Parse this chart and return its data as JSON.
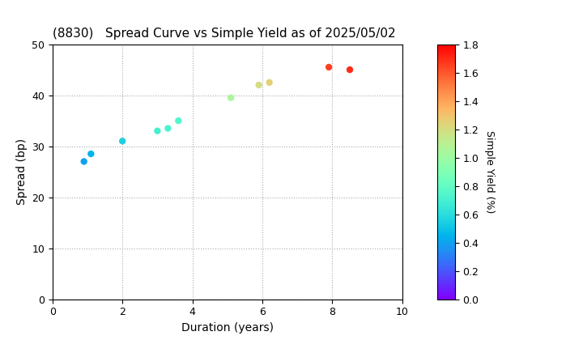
{
  "title": "(8830)   Spread Curve vs Simple Yield as of 2025/05/02",
  "xlabel": "Duration (years)",
  "ylabel": "Spread (bp)",
  "colorbar_label": "Simple Yield (%)",
  "xlim": [
    0,
    10
  ],
  "ylim": [
    0,
    50
  ],
  "colorbar_vmin": 0.0,
  "colorbar_vmax": 1.8,
  "colorbar_ticks": [
    0.0,
    0.2,
    0.4,
    0.6,
    0.8,
    1.0,
    1.2,
    1.4,
    1.6,
    1.8
  ],
  "points": [
    {
      "duration": 0.9,
      "spread": 27.0,
      "simple_yield": 0.4
    },
    {
      "duration": 1.1,
      "spread": 28.5,
      "simple_yield": 0.45
    },
    {
      "duration": 2.0,
      "spread": 31.0,
      "simple_yield": 0.55
    },
    {
      "duration": 3.0,
      "spread": 33.0,
      "simple_yield": 0.7
    },
    {
      "duration": 3.3,
      "spread": 33.5,
      "simple_yield": 0.72
    },
    {
      "duration": 3.6,
      "spread": 35.0,
      "simple_yield": 0.75
    },
    {
      "duration": 5.1,
      "spread": 39.5,
      "simple_yield": 1.05
    },
    {
      "duration": 5.9,
      "spread": 42.0,
      "simple_yield": 1.2
    },
    {
      "duration": 6.2,
      "spread": 42.5,
      "simple_yield": 1.25
    },
    {
      "duration": 7.9,
      "spread": 45.5,
      "simple_yield": 1.65
    },
    {
      "duration": 8.5,
      "spread": 45.0,
      "simple_yield": 1.7
    }
  ],
  "marker_size": 25,
  "grid_color": "#aaaaaa",
  "background_color": "#ffffff",
  "title_fontsize": 11,
  "axis_fontsize": 10,
  "colorbar_fontsize": 9
}
